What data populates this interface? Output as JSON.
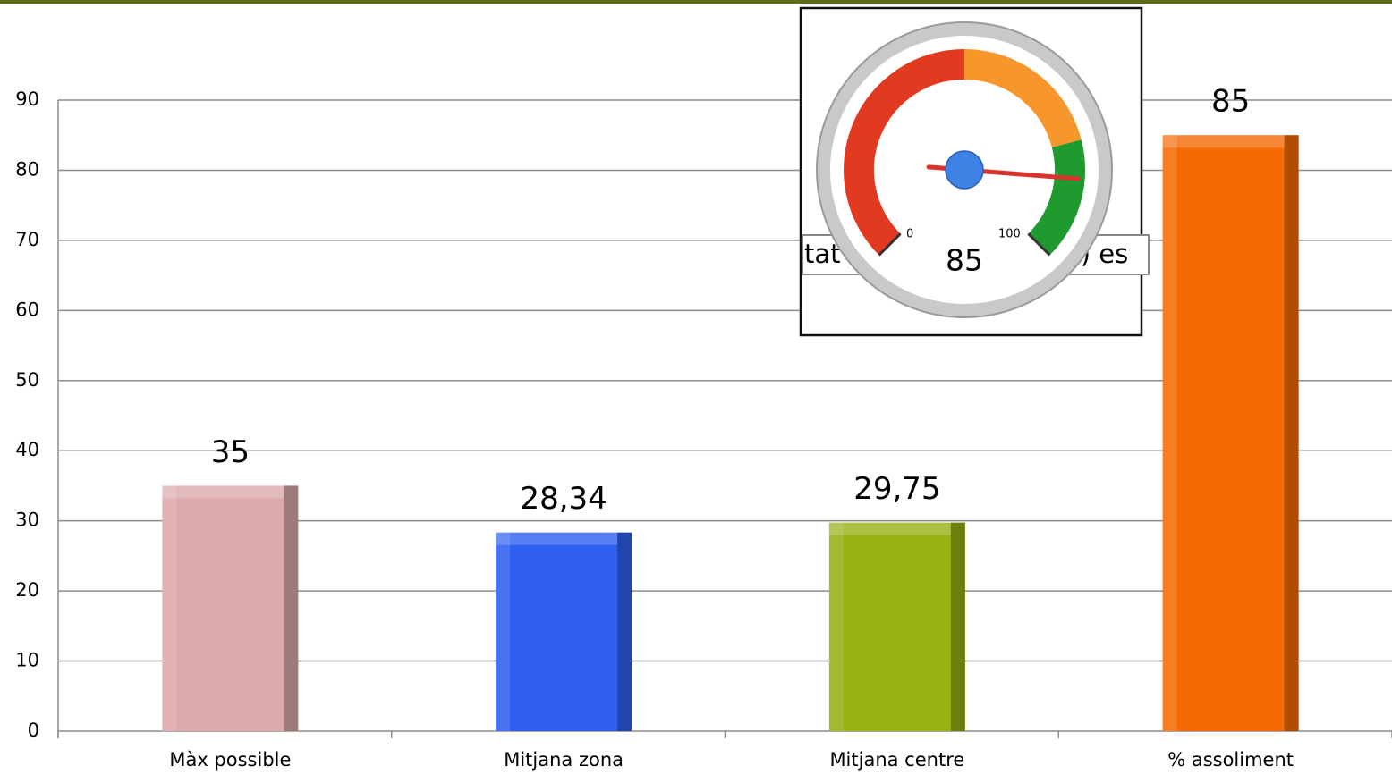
{
  "chart_data": [
    {
      "type": "bar",
      "categories": [
        "Màx possible",
        "Mitjana zona",
        "Mitjana centre",
        "% assoliment"
      ],
      "values": [
        35,
        28.34,
        29.75,
        85
      ],
      "value_labels": [
        "35",
        "28,34",
        "29,75",
        "85"
      ],
      "colors": [
        "#dba9ab",
        "#2f5ff0",
        "#97b012",
        "#f66a05"
      ],
      "ylim": [
        0,
        90
      ],
      "yticks": [
        0,
        10,
        20,
        30,
        40,
        50,
        60,
        70,
        80,
        90
      ],
      "grid": true
    },
    {
      "type": "gauge",
      "value": 85,
      "value_label": "85",
      "lim": [
        0,
        100
      ],
      "ticks": [
        0,
        100
      ],
      "bands": [
        {
          "from": 0,
          "to": 50,
          "color": "#e13a20"
        },
        {
          "from": 50,
          "to": 78,
          "color": "#f7962a"
        },
        {
          "from": 78,
          "to": 100,
          "color": "#1f9a2e"
        }
      ],
      "background_texts": [
        "tat",
        "a) es"
      ]
    }
  ]
}
